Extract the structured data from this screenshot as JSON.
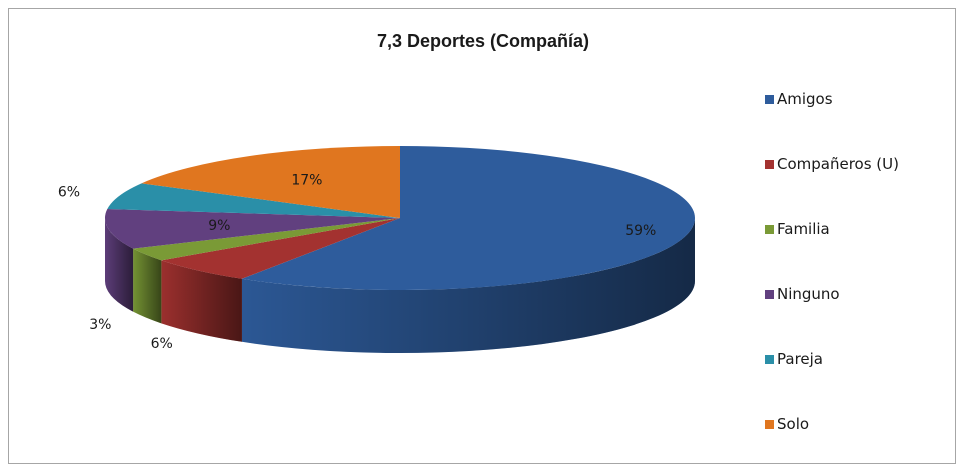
{
  "chart_data": {
    "type": "pie",
    "title": "7,3 Deportes (Compañía)",
    "categories": [
      "Amigos",
      "Compañeros (U)",
      "Familia",
      "Ninguno",
      "Pareja",
      "Solo"
    ],
    "values": [
      59,
      6,
      3,
      9,
      6,
      17
    ],
    "labels": [
      "59%",
      "6%",
      "3%",
      "9%",
      "6%",
      "17%"
    ],
    "colors": [
      "#2e5c9c",
      "#a33230",
      "#7a9a36",
      "#61407f",
      "#2a8fa8",
      "#e0761f"
    ],
    "legend_position": "right",
    "style": "3d"
  }
}
